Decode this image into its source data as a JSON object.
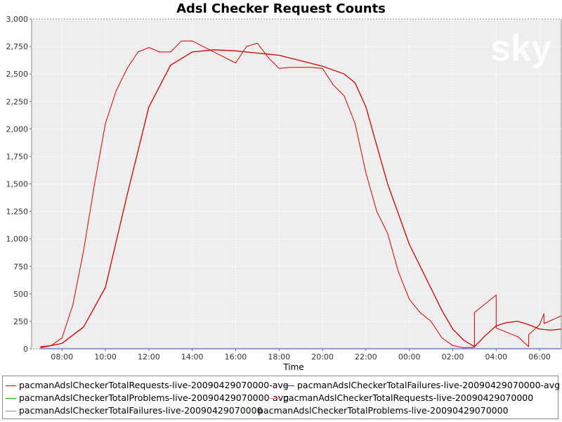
{
  "chart_data": {
    "type": "line",
    "title": "Adsl Checker Request Counts",
    "xlabel": "Time",
    "ylabel": "",
    "x_tick_labels": [
      "08:00",
      "10:00",
      "12:00",
      "14:00",
      "16:00",
      "18:00",
      "20:00",
      "22:00",
      "00:00",
      "02:00",
      "04:00",
      "06:00"
    ],
    "x_tick_hours": [
      8,
      10,
      12,
      14,
      16,
      18,
      20,
      22,
      24,
      26,
      28,
      30
    ],
    "xlim_hours": [
      6.6,
      31.0
    ],
    "ylim": [
      0,
      3000
    ],
    "y_ticks": [
      0,
      250,
      500,
      750,
      1000,
      1250,
      1500,
      1750,
      2000,
      2250,
      2500,
      2750,
      3000
    ],
    "y_tick_labels": [
      "0",
      "250",
      "500",
      "750",
      "1,000",
      "1,250",
      "1,500",
      "1,750",
      "2,000",
      "2,250",
      "2,500",
      "2,750",
      "3,000"
    ],
    "grid": true,
    "legend_position": "bottom",
    "watermark": "sky",
    "series": [
      {
        "name": "pacmanAdslCheckerTotalRequests-live-20090429070000-avg",
        "color": "#cc0000",
        "points": [
          [
            7.0,
            10
          ],
          [
            8.0,
            50
          ],
          [
            9.0,
            200
          ],
          [
            10.0,
            560
          ],
          [
            11.0,
            1400
          ],
          [
            12.0,
            2200
          ],
          [
            13.0,
            2580
          ],
          [
            14.0,
            2700
          ],
          [
            15.0,
            2720
          ],
          [
            16.0,
            2710
          ],
          [
            17.0,
            2690
          ],
          [
            18.0,
            2670
          ],
          [
            19.0,
            2620
          ],
          [
            20.0,
            2570
          ],
          [
            21.0,
            2500
          ],
          [
            21.5,
            2420
          ],
          [
            22.0,
            2200
          ],
          [
            22.5,
            1850
          ],
          [
            23.0,
            1500
          ],
          [
            24.0,
            950
          ],
          [
            25.0,
            550
          ],
          [
            25.5,
            350
          ],
          [
            26.0,
            180
          ],
          [
            26.5,
            80
          ],
          [
            27.0,
            20
          ],
          [
            27.5,
            120
          ],
          [
            28.0,
            210
          ],
          [
            28.5,
            240
          ],
          [
            29.0,
            250
          ],
          [
            29.5,
            220
          ],
          [
            30.0,
            180
          ],
          [
            30.5,
            170
          ],
          [
            31.0,
            180
          ]
        ]
      },
      {
        "name": "pacmanAdslCheckerTotalFailures-live-20090429070000-avg",
        "color": "#3333cc",
        "points": [
          [
            7.0,
            2
          ],
          [
            31.0,
            2
          ]
        ]
      },
      {
        "name": "pacmanAdslCheckerTotalProblems-live-20090429070000-avg",
        "color": "#00aa00",
        "points": [
          [
            7.0,
            1
          ],
          [
            31.0,
            1
          ]
        ]
      },
      {
        "name": "pacmanAdslCheckerTotalRequests-live-20090429070000",
        "color": "#d40000",
        "points": [
          [
            7.0,
            20
          ],
          [
            7.5,
            30
          ],
          [
            8.0,
            100
          ],
          [
            8.5,
            400
          ],
          [
            9.0,
            900
          ],
          [
            9.5,
            1500
          ],
          [
            10.0,
            2050
          ],
          [
            10.5,
            2350
          ],
          [
            11.0,
            2550
          ],
          [
            11.5,
            2700
          ],
          [
            12.0,
            2740
          ],
          [
            12.5,
            2700
          ],
          [
            13.0,
            2700
          ],
          [
            13.5,
            2800
          ],
          [
            14.0,
            2800
          ],
          [
            14.5,
            2750
          ],
          [
            15.0,
            2700
          ],
          [
            15.5,
            2650
          ],
          [
            16.0,
            2600
          ],
          [
            16.5,
            2750
          ],
          [
            17.0,
            2780
          ],
          [
            17.5,
            2650
          ],
          [
            18.0,
            2550
          ],
          [
            18.5,
            2560
          ],
          [
            19.0,
            2560
          ],
          [
            19.5,
            2560
          ],
          [
            20.0,
            2550
          ],
          [
            20.5,
            2400
          ],
          [
            21.0,
            2300
          ],
          [
            21.5,
            2050
          ],
          [
            22.0,
            1600
          ],
          [
            22.5,
            1250
          ],
          [
            23.0,
            1050
          ],
          [
            23.5,
            700
          ],
          [
            24.0,
            450
          ],
          [
            24.5,
            330
          ],
          [
            25.0,
            250
          ],
          [
            25.5,
            100
          ],
          [
            26.0,
            30
          ],
          [
            26.5,
            10
          ],
          [
            27.0,
            15
          ],
          [
            27.0,
            330
          ],
          [
            28.0,
            490
          ],
          [
            28.0,
            190
          ],
          [
            29.0,
            110
          ],
          [
            29.5,
            20
          ],
          [
            29.5,
            130
          ],
          [
            30.0,
            220
          ],
          [
            30.2,
            320
          ],
          [
            30.2,
            230
          ],
          [
            31.0,
            300
          ]
        ]
      },
      {
        "name": "pacmanAdslCheckerTotalFailures-live-20090429070000",
        "color": "#8888dd",
        "points": [
          [
            7.0,
            3
          ],
          [
            31.0,
            3
          ]
        ]
      },
      {
        "name": "pacmanAdslCheckerTotalProblems-live-20090429070000",
        "color": "#88dd88",
        "points": [
          [
            7.0,
            1
          ],
          [
            31.0,
            1
          ]
        ]
      }
    ]
  }
}
